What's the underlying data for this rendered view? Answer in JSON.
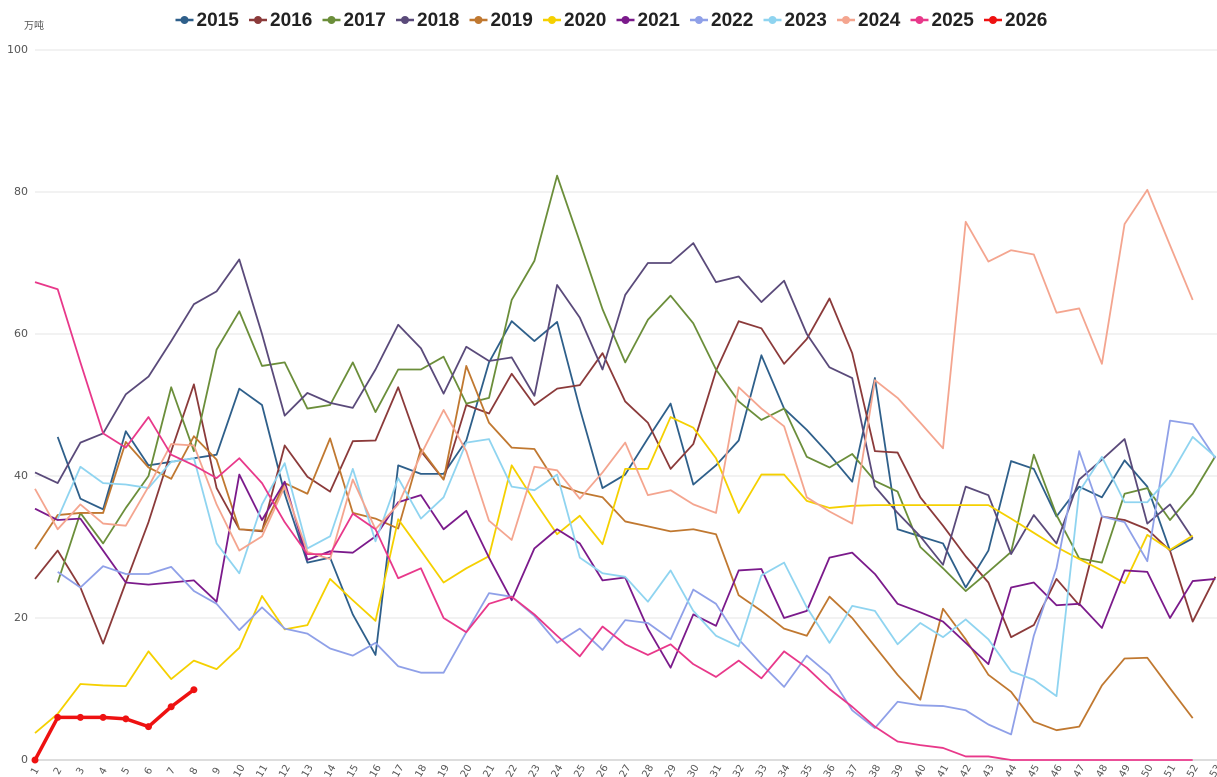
{
  "chart_data": {
    "type": "line",
    "unit": "万吨",
    "categories": [
      "1",
      "2",
      "3",
      "4",
      "5",
      "6",
      "7",
      "8",
      "9",
      "10",
      "11",
      "12",
      "13",
      "14",
      "15",
      "16",
      "17",
      "18",
      "19",
      "20",
      "21",
      "22",
      "23",
      "24",
      "25",
      "26",
      "27",
      "28",
      "29",
      "30",
      "31",
      "32",
      "33",
      "34",
      "35",
      "36",
      "37",
      "38",
      "39",
      "40",
      "41",
      "42",
      "43",
      "44",
      "45",
      "46",
      "47",
      "48",
      "49",
      "50",
      "51",
      "52",
      "53"
    ],
    "ylim": [
      0,
      100
    ],
    "yticks": [
      0,
      20,
      40,
      60,
      80,
      100
    ],
    "grid": true,
    "legend": "top",
    "series": [
      {
        "name": "2015",
        "color": "#2e5f8a",
        "values": [
          null,
          45.5,
          36.8,
          35.3,
          46.3,
          41.5,
          42,
          42.5,
          43,
          52.3,
          50,
          37.5,
          27.8,
          28.5,
          20.5,
          14.8,
          41.5,
          40.3,
          40.3,
          45,
          56,
          61.8,
          59,
          61.7,
          49.5,
          38.3,
          40.2,
          45.3,
          50.2,
          38.8,
          41.5,
          45,
          57,
          49.5,
          46.5,
          43,
          39.2,
          53.8,
          32.5,
          31.5,
          30.5,
          24.3,
          29.5,
          42.1,
          41,
          34.3,
          38.5,
          37,
          42.2,
          38.5,
          29.5,
          31.2,
          null
        ]
      },
      {
        "name": "2016",
        "color": "#8b3a3a",
        "values": [
          25.5,
          29.5,
          24.3,
          16.4,
          25,
          33.5,
          43.5,
          52.9,
          38.3,
          32.5,
          32.2,
          44.3,
          39.9,
          37.8,
          44.9,
          45,
          52.5,
          43.5,
          39.5,
          50,
          48.8,
          54.4,
          50,
          52.3,
          52.8,
          57.3,
          50.5,
          47.5,
          41,
          44.5,
          54.8,
          61.8,
          60.8,
          55.8,
          59.3,
          65,
          57.3,
          43.5,
          43.3,
          37,
          33,
          28.7,
          25,
          17.3,
          19,
          25.5,
          21.8,
          34.3,
          33.8,
          32.5,
          29.5,
          19.5,
          25.8
        ]
      },
      {
        "name": "2017",
        "color": "#6b8e3a",
        "values": [
          null,
          25,
          34.8,
          30.5,
          35.5,
          40,
          52.5,
          43.5,
          57.8,
          63.2,
          55.5,
          56,
          49.5,
          50,
          56,
          49,
          55,
          55,
          56.8,
          50.2,
          51,
          64.8,
          70.3,
          82.3,
          73,
          63.5,
          56,
          62,
          65.4,
          61.5,
          55,
          50.5,
          47.9,
          49.5,
          42.7,
          41.2,
          43.1,
          39.3,
          37.8,
          30,
          27,
          23.8,
          26.5,
          29.3,
          43,
          34.5,
          28.4,
          27.8,
          37.5,
          38.3,
          33.8,
          37.5,
          42.8
        ]
      },
      {
        "name": "2018",
        "color": "#5a4a7a",
        "values": [
          40.5,
          39,
          44.7,
          46,
          51.5,
          54,
          59,
          64.2,
          66,
          70.5,
          60,
          48.5,
          51.7,
          50.3,
          49.6,
          55,
          61.3,
          58,
          51.6,
          58.2,
          56.2,
          56.7,
          51.3,
          66.9,
          62.3,
          55,
          65.5,
          70,
          70,
          72.8,
          67.3,
          68.1,
          64.5,
          67.5,
          60,
          55.3,
          53.8,
          38.5,
          34.8,
          31.5,
          27.5,
          38.5,
          37.3,
          29,
          34.5,
          30.5,
          39.5,
          42.3,
          45.2,
          33.3,
          36,
          31.2,
          null
        ]
      },
      {
        "name": "2019",
        "color": "#c07830",
        "values": [
          29.7,
          34.5,
          34.8,
          34.8,
          44.8,
          41.2,
          39.6,
          45.6,
          42.3,
          32.5,
          32.3,
          39,
          37.5,
          45.3,
          34.8,
          34,
          32.6,
          43.8,
          39.5,
          55.5,
          47.5,
          44,
          43.8,
          38.8,
          37.7,
          37,
          33.6,
          32.9,
          32.2,
          32.5,
          31.8,
          23.2,
          21,
          18.5,
          17.5,
          23,
          20,
          16,
          12,
          8.5,
          21.3,
          17,
          12,
          9.6,
          5.4,
          4.2,
          4.7,
          10.5,
          14.3,
          14.4,
          10.1,
          5.9,
          null
        ]
      },
      {
        "name": "2020",
        "color": "#f5d000",
        "values": [
          3.8,
          6.5,
          10.7,
          10.5,
          10.4,
          15.3,
          11.4,
          14,
          12.8,
          15.8,
          23.1,
          18.4,
          19,
          25.5,
          22.5,
          19.6,
          33.9,
          29.5,
          25,
          27,
          28.7,
          41.5,
          36.5,
          31.8,
          34.4,
          30.4,
          41,
          41,
          48.3,
          46.8,
          42.5,
          34.8,
          40.2,
          40.2,
          36.5,
          35.5,
          35.8,
          35.9,
          35.9,
          35.9,
          35.9,
          35.9,
          35.9,
          34,
          32,
          30,
          28.3,
          26.7,
          24.9,
          31.7,
          29.6,
          31.6,
          null
        ]
      },
      {
        "name": "2021",
        "color": "#7b1a8b",
        "values": [
          35.4,
          33.8,
          34,
          29.5,
          25,
          24.7,
          25,
          25.3,
          22.3,
          40.2,
          33.8,
          39.2,
          28.2,
          29.4,
          29.2,
          31.5,
          36.3,
          37.3,
          32.5,
          35.1,
          28.5,
          22.5,
          29.8,
          32.5,
          30.5,
          25.3,
          25.7,
          18.5,
          13,
          20.5,
          18.9,
          26.7,
          26.9,
          20,
          21,
          28.5,
          29.2,
          26.2,
          22,
          20.8,
          19.5,
          16.5,
          13.5,
          24.3,
          25,
          21.8,
          22,
          18.6,
          26.7,
          26.5,
          20,
          25.2,
          25.5
        ]
      },
      {
        "name": "2022",
        "color": "#8fa0e8",
        "values": [
          null,
          26.5,
          24.3,
          27.3,
          26.2,
          26.2,
          27.2,
          23.8,
          22,
          18.3,
          21.5,
          18.5,
          17.8,
          15.7,
          14.7,
          16.5,
          13.2,
          12.3,
          12.3,
          18,
          23.5,
          23,
          20.3,
          16.5,
          18.5,
          15.5,
          19.7,
          19.3,
          17,
          24,
          22,
          17,
          13.5,
          10.3,
          14.7,
          12,
          7,
          4.5,
          8.2,
          7.7,
          7.6,
          7,
          5,
          3.6,
          17.5,
          27,
          43.5,
          34.3,
          33.5,
          28,
          47.8,
          47.3,
          42.5
        ]
      },
      {
        "name": "2023",
        "color": "#8fd4f0",
        "values": [
          null,
          34,
          41.3,
          39,
          38.8,
          38.3,
          42,
          42.5,
          30.5,
          26.3,
          36,
          41.8,
          29.8,
          31.5,
          41,
          30.8,
          39.7,
          34,
          37,
          44.7,
          45.2,
          38.5,
          38,
          40.2,
          28.5,
          26.3,
          25.8,
          22.3,
          26.7,
          21,
          17.5,
          16,
          26,
          27.8,
          21.5,
          16.5,
          21.7,
          21,
          16.3,
          19.3,
          17.3,
          19.8,
          17,
          12.5,
          11.3,
          9,
          37.8,
          42.7,
          36.3,
          36.3,
          40,
          45.5,
          42.7
        ]
      },
      {
        "name": "2024",
        "color": "#f4a58f",
        "values": [
          38.2,
          32.5,
          36,
          33.3,
          33,
          38.5,
          44.5,
          44.3,
          36,
          29.5,
          31.5,
          38.5,
          29.3,
          28.3,
          39.5,
          32.5,
          36,
          43,
          49.3,
          43.5,
          33.7,
          31,
          41.3,
          40.8,
          36.8,
          40.5,
          44.7,
          37.3,
          38,
          36,
          34.8,
          52.5,
          49.5,
          47,
          37,
          35,
          33.3,
          53.5,
          51,
          47.5,
          43.9,
          75.8,
          70.2,
          71.8,
          71.2,
          63,
          63.6,
          55.8,
          75.5,
          80.3,
          72.5,
          64.8,
          null
        ]
      },
      {
        "name": "2025",
        "color": "#e8388a",
        "values": [
          67.3,
          66.3,
          56,
          46,
          44,
          48.3,
          43,
          41.5,
          39.7,
          42.5,
          39,
          33.5,
          29,
          29,
          34.7,
          32.5,
          25.6,
          27,
          20,
          18,
          22,
          23,
          20.5,
          17.5,
          14.6,
          18.8,
          16.3,
          14.8,
          16.3,
          13.5,
          11.7,
          14,
          11.5,
          15.3,
          13,
          10,
          7.5,
          4.7,
          2.6,
          2.1,
          1.7,
          0.5,
          0.5,
          0,
          0,
          0,
          0,
          0,
          0,
          0,
          0,
          0,
          null
        ]
      },
      {
        "name": "2026",
        "color": "#ee1111",
        "marker": true,
        "values": [
          0,
          6,
          6,
          6,
          5.8,
          4.7,
          7.5,
          9.9,
          null,
          null,
          null,
          null,
          null,
          null,
          null,
          null,
          null,
          null,
          null,
          null,
          null,
          null,
          null,
          null,
          null,
          null,
          null,
          null,
          null,
          null,
          null,
          null,
          null,
          null,
          null,
          null,
          null,
          null,
          null,
          null,
          null,
          null,
          null,
          null,
          null,
          null,
          null,
          null,
          null,
          null,
          null,
          null,
          null
        ]
      }
    ]
  }
}
